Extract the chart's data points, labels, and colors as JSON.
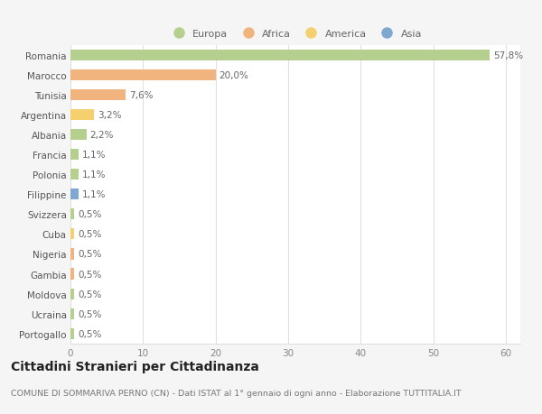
{
  "countries": [
    "Romania",
    "Marocco",
    "Tunisia",
    "Argentina",
    "Albania",
    "Francia",
    "Polonia",
    "Filippine",
    "Svizzera",
    "Cuba",
    "Nigeria",
    "Gambia",
    "Moldova",
    "Ucraina",
    "Portogallo"
  ],
  "values": [
    57.8,
    20.0,
    7.6,
    3.2,
    2.2,
    1.1,
    1.1,
    1.1,
    0.5,
    0.5,
    0.5,
    0.5,
    0.5,
    0.5,
    0.5
  ],
  "labels": [
    "57,8%",
    "20,0%",
    "7,6%",
    "3,2%",
    "2,2%",
    "1,1%",
    "1,1%",
    "1,1%",
    "0,5%",
    "0,5%",
    "0,5%",
    "0,5%",
    "0,5%",
    "0,5%",
    "0,5%"
  ],
  "colors": [
    "#b5cf8e",
    "#f2b47e",
    "#f2b47e",
    "#f5d06e",
    "#b5cf8e",
    "#b5cf8e",
    "#b5cf8e",
    "#7ea8cf",
    "#b5cf8e",
    "#f5d06e",
    "#f2b47e",
    "#f2b47e",
    "#b5cf8e",
    "#b5cf8e",
    "#b5cf8e"
  ],
  "legend_labels": [
    "Europa",
    "Africa",
    "America",
    "Asia"
  ],
  "legend_colors": [
    "#b5cf8e",
    "#f2b47e",
    "#f5d06e",
    "#7ea8cf"
  ],
  "title": "Cittadini Stranieri per Cittadinanza",
  "subtitle": "COMUNE DI SOMMARIVA PERNO (CN) - Dati ISTAT al 1° gennaio di ogni anno - Elaborazione TUTTITALIA.IT",
  "xlim": [
    0,
    62
  ],
  "xticks": [
    0,
    10,
    20,
    30,
    40,
    50,
    60
  ],
  "bg_color": "#f5f5f5",
  "plot_bg_color": "#ffffff",
  "grid_color": "#e0e0e0",
  "bar_height": 0.55,
  "label_fontsize": 7.5,
  "ytick_fontsize": 7.5,
  "xtick_fontsize": 7.5,
  "title_fontsize": 10,
  "subtitle_fontsize": 6.8,
  "legend_fontsize": 8
}
